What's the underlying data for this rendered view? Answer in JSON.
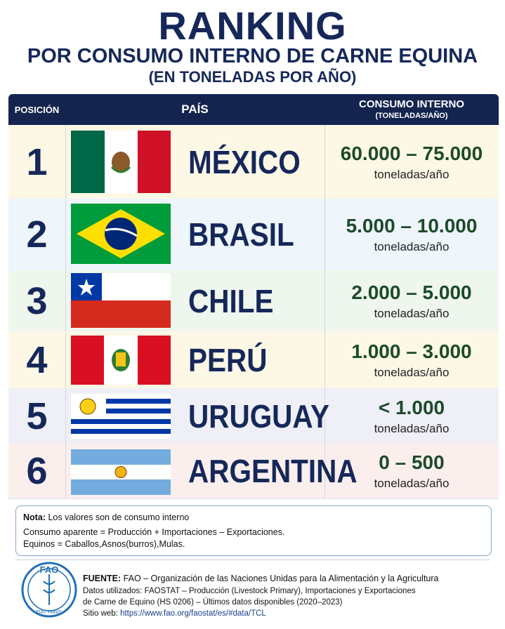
{
  "header": {
    "title": "RANKING",
    "subtitle": "POR CONSUMO INTERNO DE CARNE EQUINA",
    "unit": "(EN TONELADAS POR AÑO)"
  },
  "table": {
    "headers": {
      "position": "POSICIÓN",
      "country": "PAÍS",
      "value": "CONSUMO INTERNO",
      "value_unit": "(TONELADAS/AÑO)"
    },
    "rows": [
      {
        "position": 1,
        "country": "MÉXICO",
        "value": "60.000 – 75.000",
        "unit": "toneladas/año"
      },
      {
        "position": 2,
        "country": "BRASIL",
        "value": "5.000 – 10.000",
        "unit": "toneladas/año"
      },
      {
        "position": 3,
        "country": "CHILE",
        "value": "2.000 – 5.000",
        "unit": "toneladas/año"
      },
      {
        "position": 4,
        "country": "PERÚ",
        "value": "1.000 – 3.000",
        "unit": "toneladas/año"
      },
      {
        "position": 5,
        "country": "URUGUAY",
        "value": "< 1.000",
        "unit": "toneladas/año"
      },
      {
        "position": 6,
        "country": "ARGENTINA",
        "value": "0 – 500",
        "unit": "toneladas/año"
      }
    ]
  },
  "note": {
    "label": "Nota:",
    "text": "Los valores son de consumo interno",
    "lines": [
      "Consumo aparente = Producción + Importaciones – Exportaciones.",
      "Equinos = Caballos,Asnos(burros),Mulas."
    ]
  },
  "source": {
    "logo": "FAO",
    "logo_motto": "FIAT PANIS",
    "label": "FUENTE:",
    "text": "FAO – Organización de las Naciones Unidas para la Alimentación y la Agricultura",
    "lines": [
      "Datos utilizados:  FAOSTAT – Producción (Livestock Primary), Importaciones y Exportaciones",
      "de Carne de Equino (HS 0206) – Últimos datos disponibles (2020–2023)"
    ],
    "web_label": "Sitio web:",
    "web_url": "https://www.fao.org/faostat/es/#data/TCL"
  }
}
